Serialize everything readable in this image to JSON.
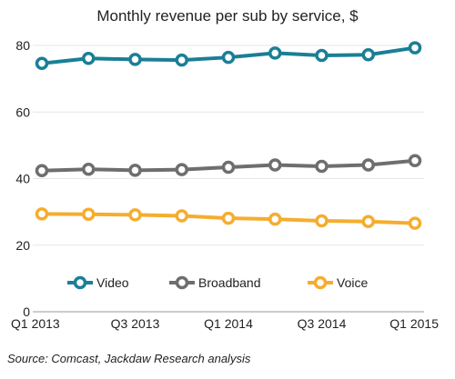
{
  "chart_data": {
    "type": "line",
    "title": "Monthly revenue per sub by service, $",
    "source": "Source: Comcast, Jackdaw Research analysis",
    "x": [
      "Q1 2013",
      "Q2 2013",
      "Q3 2013",
      "Q4 2013",
      "Q1 2014",
      "Q2 2014",
      "Q3 2014",
      "Q4 2014",
      "Q1 2015"
    ],
    "x_tick_labels": [
      "Q1 2013",
      "Q3 2013",
      "Q1 2014",
      "Q3 2014",
      "Q1 2015"
    ],
    "ylim": [
      0,
      80
    ],
    "y_ticks": [
      "0",
      "20",
      "40",
      "60",
      "80"
    ],
    "grid": true,
    "legend_position": "bottom-inside",
    "series": [
      {
        "name": "Video",
        "color": "#1a7f96",
        "values": [
          74.6,
          76.1,
          75.8,
          75.6,
          76.4,
          77.7,
          77.0,
          77.2,
          79.3
        ]
      },
      {
        "name": "Broadband",
        "color": "#6e6e6e",
        "values": [
          42.4,
          42.8,
          42.5,
          42.7,
          43.4,
          44.1,
          43.7,
          44.1,
          45.4
        ]
      },
      {
        "name": "Voice",
        "color": "#f5ad2e",
        "values": [
          29.4,
          29.3,
          29.1,
          28.8,
          28.1,
          27.8,
          27.3,
          27.1,
          26.6
        ]
      }
    ]
  }
}
